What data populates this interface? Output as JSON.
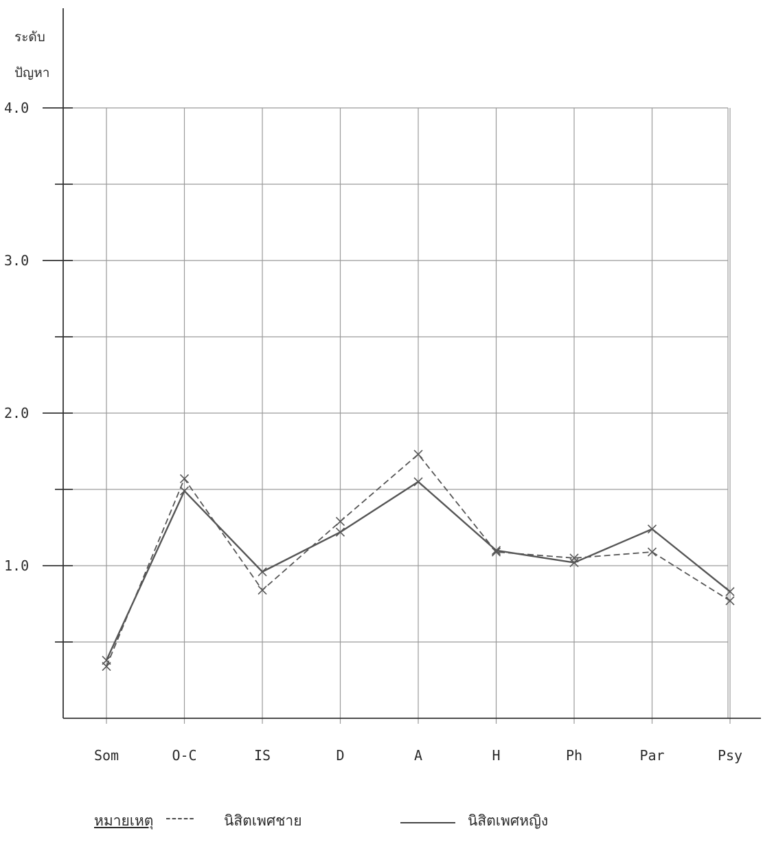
{
  "chart_data": {
    "type": "line",
    "ylabel_lines": [
      "ระดับ",
      "ปัญหา"
    ],
    "categories": [
      "Som",
      "O-C",
      "IS",
      "D",
      "A",
      "H",
      "Ph",
      "Par",
      "Psy"
    ],
    "y_ticks": [
      "4.0",
      "3.0",
      "2.0",
      "1.0"
    ],
    "ylim": [
      0,
      4.0
    ],
    "grid": true,
    "series": [
      {
        "name": "นิสิตเพศชาย",
        "style": "dashed",
        "values": [
          0.34,
          1.57,
          0.84,
          1.29,
          1.73,
          1.09,
          1.05,
          1.09,
          0.77
        ]
      },
      {
        "name": "นิสิตเพศหญิง",
        "style": "solid",
        "values": [
          0.38,
          1.49,
          0.96,
          1.22,
          1.55,
          1.1,
          1.02,
          1.24,
          0.83
        ]
      }
    ],
    "legend": {
      "title": "หมายเหตุ",
      "dash_sample": "-----",
      "male": "นิสิตเพศชาย",
      "female": "นิสิตเพศหญิง"
    },
    "colors": {
      "line": "#555555",
      "grid": "#9a9a9a",
      "axis": "#333333"
    }
  }
}
